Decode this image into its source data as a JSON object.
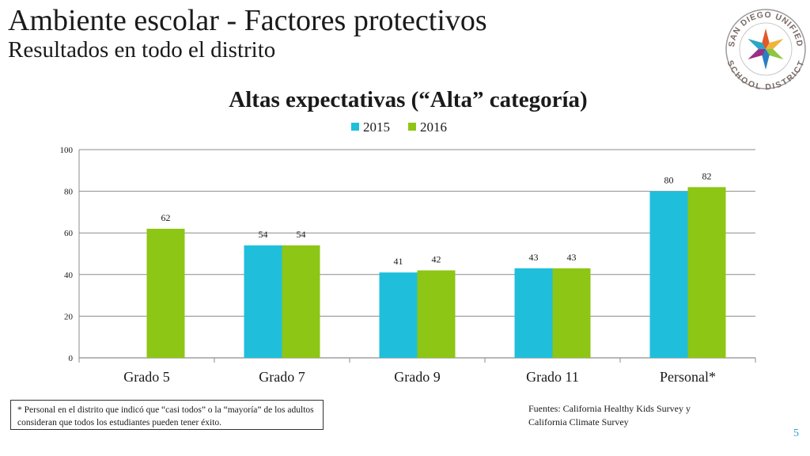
{
  "slide": {
    "title": "Ambiente escolar - Factores protectivos",
    "subtitle": "Resultados en todo el distrito",
    "page_number": "5"
  },
  "logo": {
    "text_top": "SAN DIEGO UNIFIED",
    "text_bottom": "SCHOOL DISTRICT",
    "colors": [
      "#e15a2a",
      "#f0b43c",
      "#8dc63f",
      "#2a7fc1",
      "#9b2f82",
      "#2aa6c6"
    ]
  },
  "footnote": "* Personal en el distrito que indicó que “casi todos” o la “mayoría” de los adultos consideran que todos los estudiantes pueden tener éxito.",
  "sources": "Fuentes: California Healthy Kids Survey y California Climate  Survey",
  "chart_data": {
    "type": "bar",
    "title": "Altas expectativas (“Alta” categoría)",
    "categories": [
      "Grado 5",
      "Grado 7",
      "Grado 9",
      "Grado 11",
      "Personal*"
    ],
    "series": [
      {
        "name": "2015",
        "color": "#1fbfdc",
        "values": [
          null,
          54,
          41,
          43,
          80
        ]
      },
      {
        "name": "2016",
        "color": "#8dc614",
        "values": [
          62,
          54,
          42,
          43,
          82
        ]
      }
    ],
    "ylim": [
      0,
      100
    ],
    "yticks": [
      0,
      20,
      40,
      60,
      80,
      100
    ],
    "xlabel": "",
    "ylabel": "",
    "grid": true,
    "legend": "top-center"
  }
}
